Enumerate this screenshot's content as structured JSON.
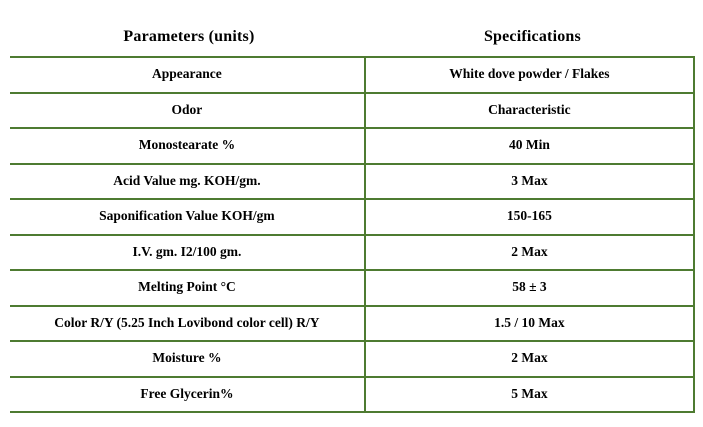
{
  "table": {
    "border_color": "#4e7b31",
    "header": {
      "parameters": "Parameters (units)",
      "specifications": "Specifications"
    },
    "rows": [
      {
        "parameter": "Appearance",
        "specification": "White dove powder / Flakes"
      },
      {
        "parameter": "Odor",
        "specification": "Characteristic"
      },
      {
        "parameter": "Monostearate %",
        "specification": "40 Min"
      },
      {
        "parameter": "Acid Value mg. KOH/gm.",
        "specification": "3 Max"
      },
      {
        "parameter": "Saponification Value KOH/gm",
        "specification": "150-165"
      },
      {
        "parameter": "I.V. gm. I2/100 gm.",
        "specification": "2 Max"
      },
      {
        "parameter": "Melting Point °C",
        "specification": "58 ± 3"
      },
      {
        "parameter": "Color R/Y (5.25 Inch Lovibond color cell) R/Y",
        "specification": "1.5 / 10 Max"
      },
      {
        "parameter": "Moisture  %",
        "specification": "2 Max"
      },
      {
        "parameter": "Free Glycerin%",
        "specification": "5 Max"
      }
    ]
  }
}
